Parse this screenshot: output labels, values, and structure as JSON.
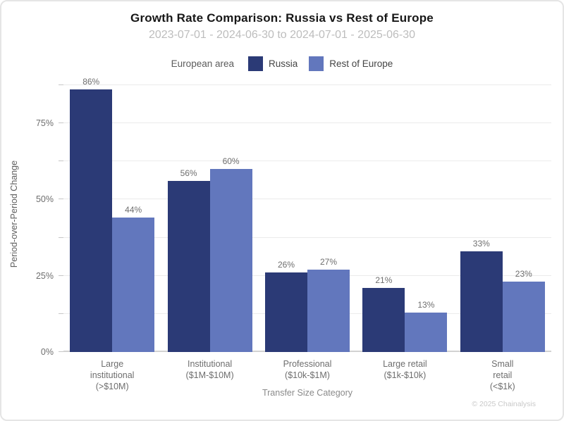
{
  "header": {
    "title": "Growth Rate Comparison: Russia vs Rest of Europe",
    "subtitle": "2023-07-01 - 2024-06-30 to 2024-07-01 - 2025-06-30"
  },
  "legend": {
    "title": "European area",
    "items": [
      {
        "label": "Russia",
        "color": "#2b3a76"
      },
      {
        "label": "Rest of Europe",
        "color": "#6277bd"
      }
    ]
  },
  "chart_data": {
    "type": "bar",
    "title": "Growth Rate Comparison: Russia vs Rest of Europe",
    "subtitle": "2023-07-01 - 2024-06-30 to 2024-07-01 - 2025-06-30",
    "categories": [
      "Large institutional (>$10M)",
      "Institutional ($1M-$10M)",
      "Professional ($10k-$1M)",
      "Large retail ($1k-$10k)",
      "Small retail (<$1k)"
    ],
    "category_lines": [
      [
        "Large",
        "institutional",
        "(>$10M)"
      ],
      [
        "Institutional",
        "($1M-$10M)"
      ],
      [
        "Professional",
        "($10k-$1M)"
      ],
      [
        "Large retail",
        "($1k-$10k)"
      ],
      [
        "Small",
        "retail",
        "(<$1k)"
      ]
    ],
    "series": [
      {
        "name": "Russia",
        "color": "#2b3a76",
        "values": [
          86,
          56,
          26,
          21,
          33
        ]
      },
      {
        "name": "Rest of Europe",
        "color": "#6277bd",
        "values": [
          44,
          60,
          27,
          13,
          23
        ]
      }
    ],
    "value_suffix": "%",
    "xlabel": "Transfer Size Category",
    "ylabel": "Period-over-Period Change",
    "ylim": [
      0,
      90
    ],
    "yticks": [
      0,
      25,
      50,
      75
    ],
    "ytick_labels": [
      "0%",
      "25%",
      "50%",
      "75%"
    ],
    "gridline_step": 12.5,
    "grid": true,
    "legend_position": "top",
    "legend_title": "European area"
  },
  "footer": {
    "copyright": "© 2025 Chainalysis"
  }
}
